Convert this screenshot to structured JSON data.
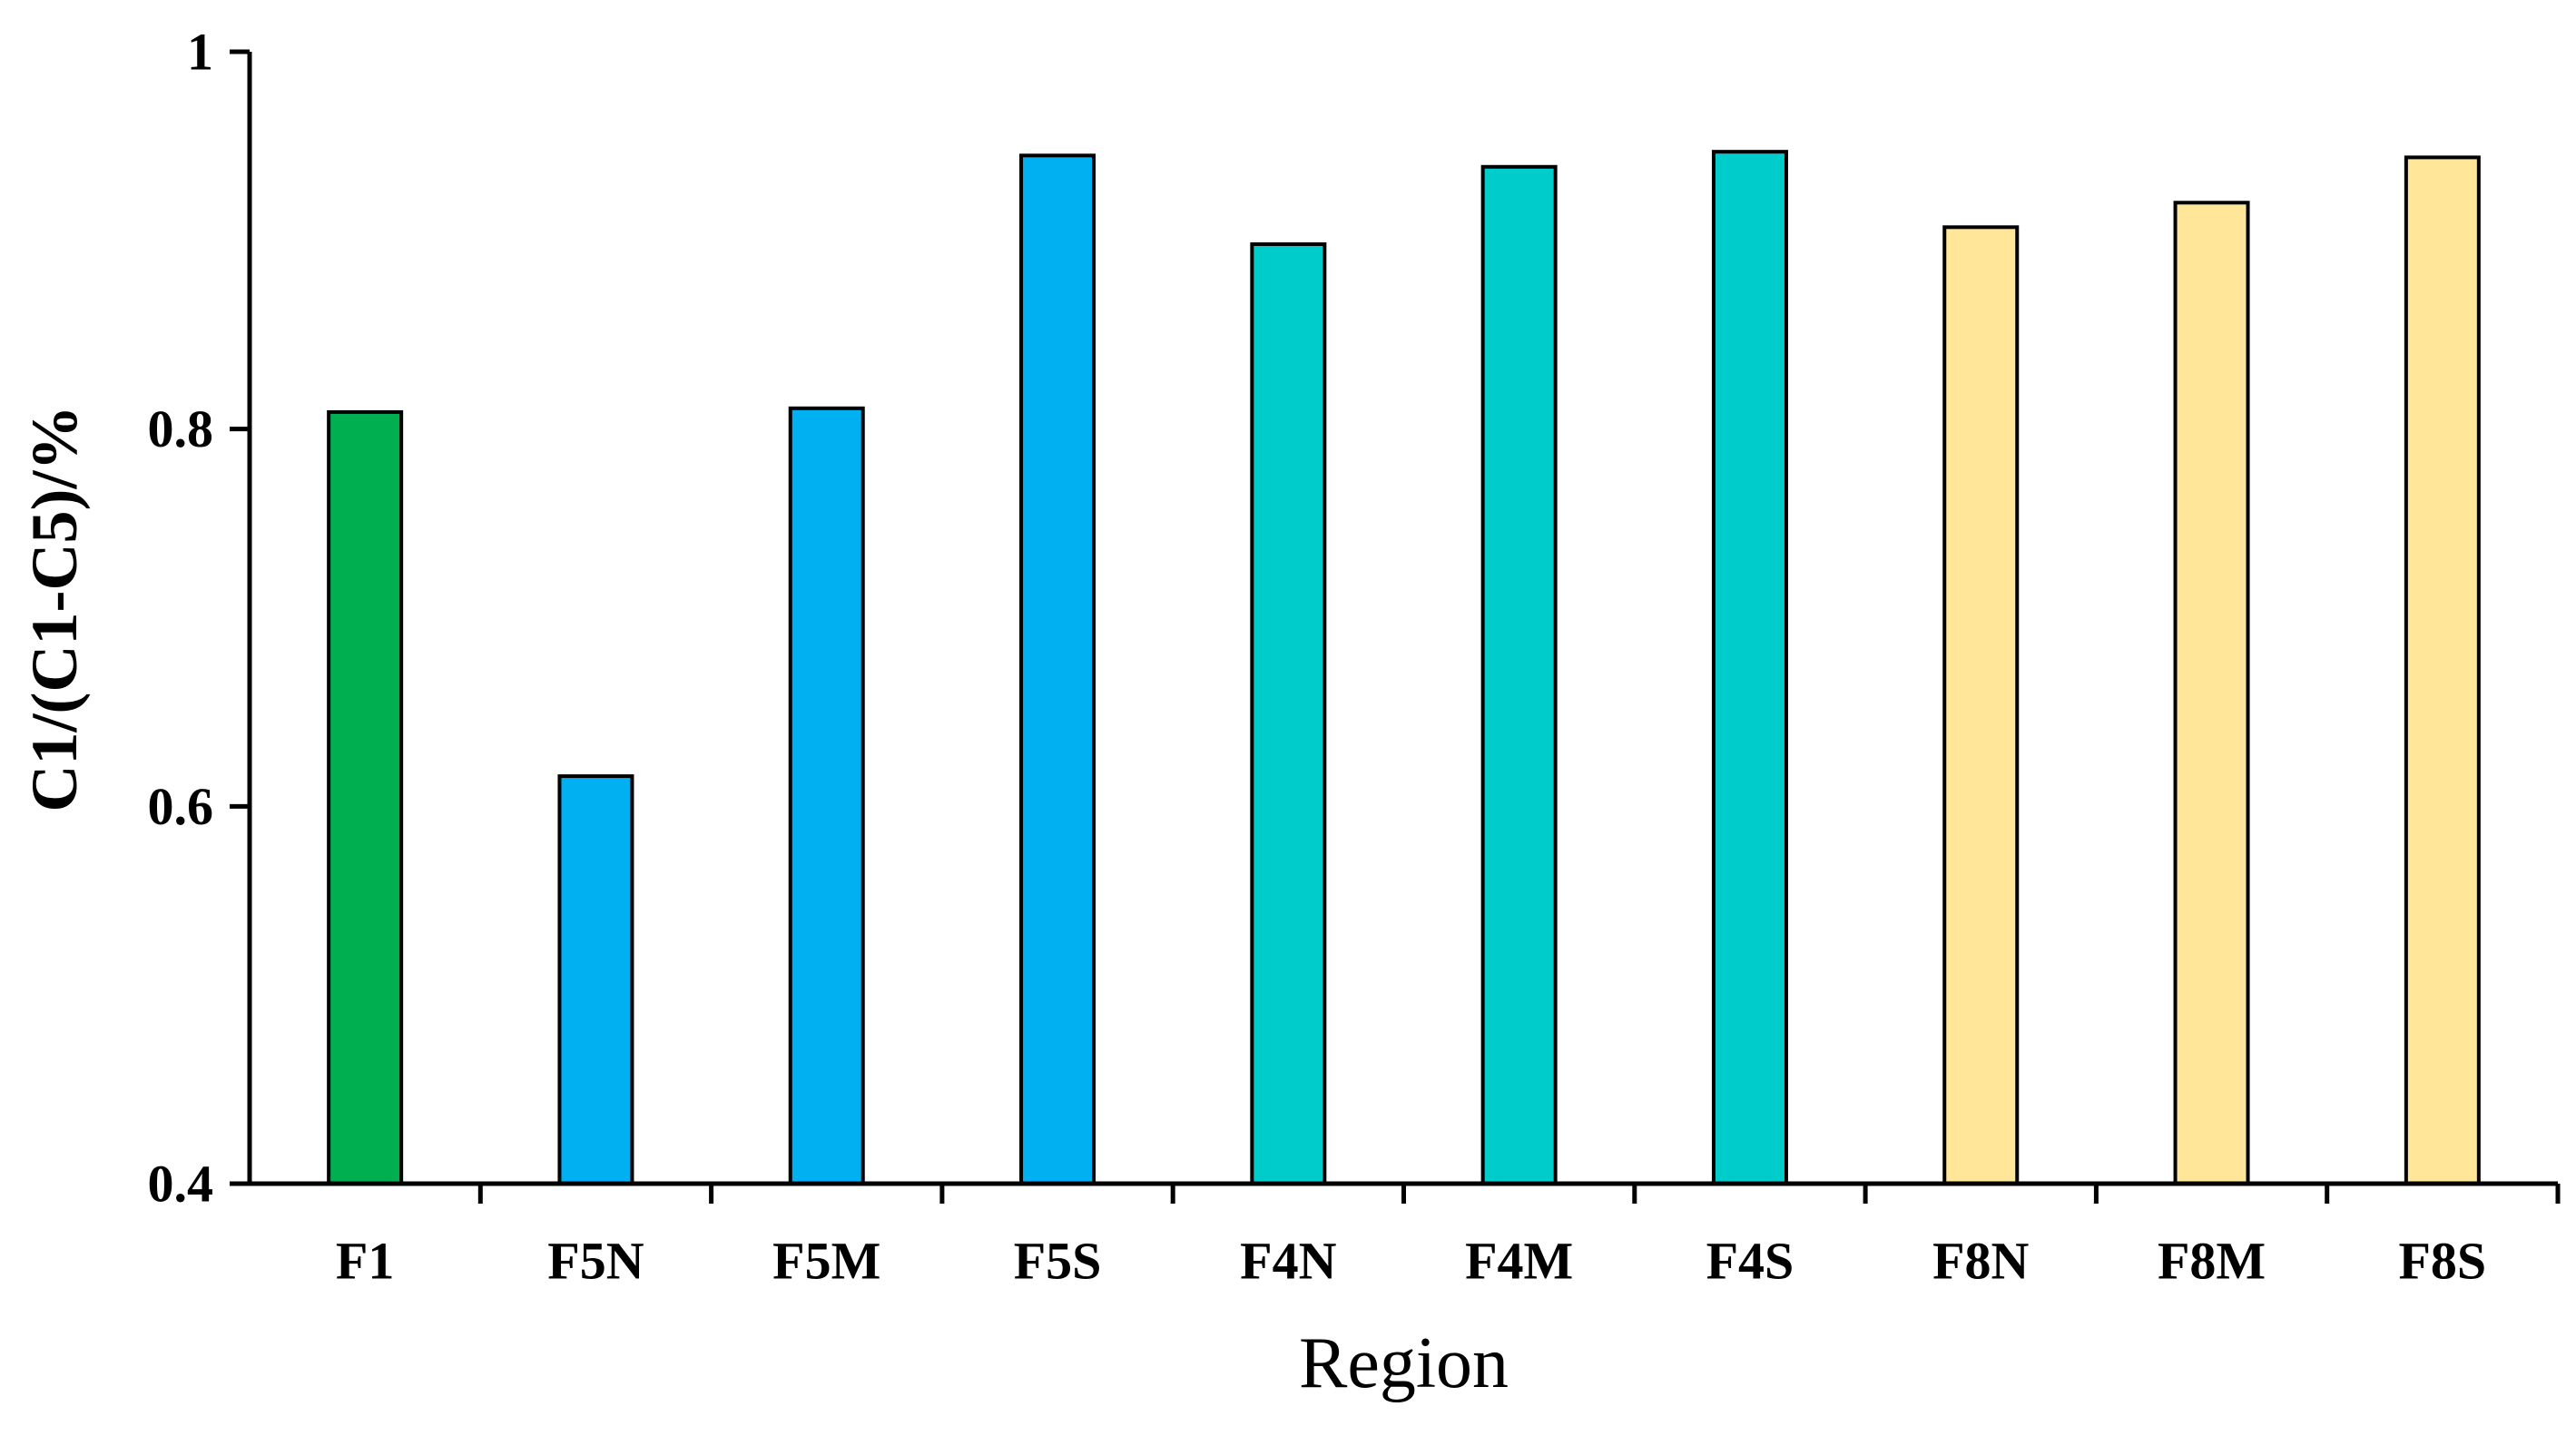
{
  "chart_data": {
    "type": "bar",
    "title": "",
    "xlabel": "Region",
    "ylabel": "C1/(C1-C5)/%",
    "ylim": [
      0.4,
      1
    ],
    "yticks": [
      0.4,
      0.6,
      0.8,
      1
    ],
    "ytick_labels": [
      "0.4",
      "0.6",
      "0.8",
      "1"
    ],
    "grid": false,
    "legend": "none",
    "categories": [
      "F1",
      "F5N",
      "F5M",
      "F5S",
      "F4N",
      "F4M",
      "F4S",
      "F8N",
      "F8M",
      "F8S"
    ],
    "values": [
      0.809,
      0.616,
      0.811,
      0.945,
      0.898,
      0.939,
      0.947,
      0.907,
      0.92,
      0.944
    ],
    "bar_colors": [
      "#00b050",
      "#00b0f0",
      "#00b0f0",
      "#00b0f0",
      "#00cccc",
      "#00cccc",
      "#00cccc",
      "#ffe699",
      "#ffe699",
      "#ffe699"
    ],
    "bar_edge_color": "#000000",
    "axis_color": "#000000"
  }
}
